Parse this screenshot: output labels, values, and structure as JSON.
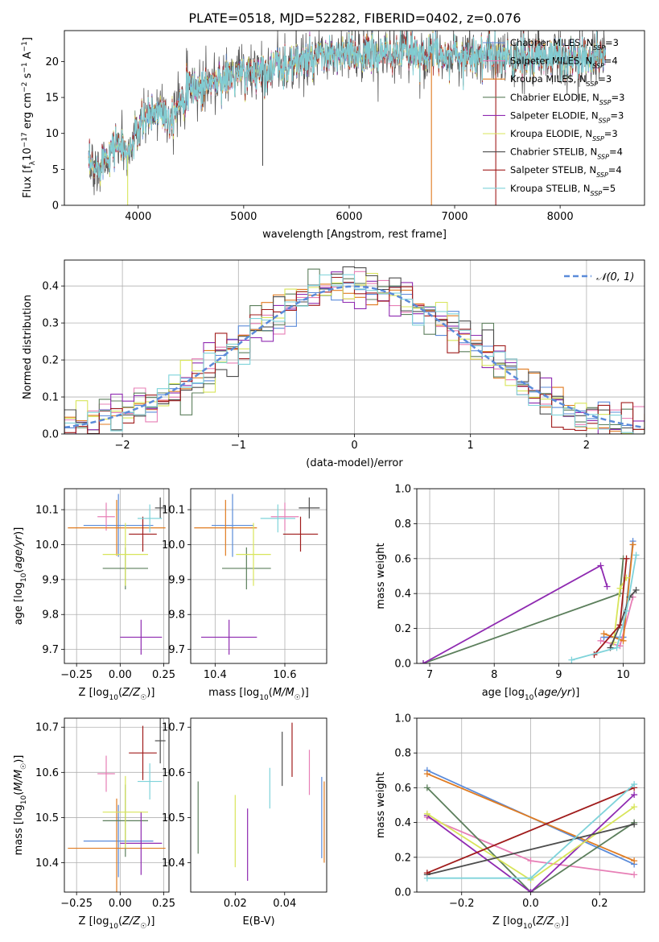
{
  "figure": {
    "title": "PLATE=0518, MJD=52282, FIBERID=0402, z=0.076"
  },
  "colors": {
    "Chabrier MILES": "#5b8bd9",
    "Salpeter MILES": "#e77fb6",
    "Kroupa MILES": "#e07b20",
    "Chabrier ELODIE": "#5c7f5c",
    "Salpeter ELODIE": "#8f2ab1",
    "Kroupa ELODIE": "#d8e55a",
    "Chabrier STELIB": "#4d4d4d",
    "Salpeter STELIB": "#a01c1c",
    "Kroupa STELIB": "#7fd3da"
  },
  "chart_data": [
    {
      "id": "spectrum",
      "type": "line",
      "xlabel": "wavelength [Angstrom, rest frame]",
      "ylabel": "Flux [fλ10⁻¹⁷ erg cm⁻² s⁻¹ A⁻¹]",
      "xlim": [
        3300,
        8800
      ],
      "ylim": [
        0,
        24.3
      ],
      "xticks": [
        4000,
        5000,
        6000,
        7000,
        8000
      ],
      "yticks": [
        0,
        5,
        10,
        15,
        20
      ],
      "grid": false,
      "legend_position": "right",
      "legend": [
        "Chabrier MILES, N_SSP=3",
        "Salpeter MILES, N_SSP=4",
        "Kroupa MILES, N_SSP=3",
        "Chabrier ELODIE, N_SSP=3",
        "Salpeter ELODIE, N_SSP=3",
        "Kroupa ELODIE, N_SSP=3",
        "Chabrier STELIB, N_SSP=4",
        "Salpeter STELIB, N_SSP=4",
        "Kroupa STELIB, N_SSP=5"
      ],
      "continuum": {
        "x": [
          3530,
          3600,
          3700,
          3800,
          3900,
          4000,
          4100,
          4200,
          4300,
          4400,
          4500,
          4700,
          4900,
          5100,
          5300,
          5500,
          5700,
          5900,
          6100,
          6300,
          6500,
          6700,
          6900,
          7100,
          7300,
          7500,
          7700,
          7900,
          8100,
          8300,
          8430
        ],
        "y": [
          5.5,
          5.0,
          7.2,
          8.6,
          7.0,
          10.5,
          12.5,
          13.5,
          12.0,
          15.0,
          16.0,
          17.2,
          18.0,
          18.5,
          19.2,
          19.8,
          20.4,
          20.8,
          21.0,
          21.0,
          21.3,
          21.2,
          21.0,
          20.8,
          21.0,
          20.5,
          20.3,
          21.0,
          20.2,
          20.8,
          20.8
        ]
      },
      "spikes": [
        {
          "x": 3900,
          "y_low": 0,
          "color": "#d8e55a"
        },
        {
          "x": 5180,
          "y_low": 5.5,
          "color": "#4d4d4d"
        },
        {
          "x": 6780,
          "y_low": 0,
          "color": "#e07b20"
        },
        {
          "x": 7390,
          "y_low": 0,
          "color": "#a01c1c"
        }
      ]
    },
    {
      "id": "residuals",
      "type": "line",
      "xlabel": "(data-model)/error",
      "ylabel": "Normed distribution",
      "xlim": [
        -2.5,
        2.5
      ],
      "ylim": [
        0,
        0.47
      ],
      "xticks": [
        -2,
        -1,
        0,
        1,
        2
      ],
      "yticks": [
        0.0,
        0.1,
        0.2,
        0.3,
        0.4
      ],
      "grid": true,
      "legend": [
        "𝒩(0, 1)"
      ],
      "legend_position": "top-right",
      "curve": "standard normal pdf",
      "bin_width": 0.1
    },
    {
      "id": "z-age",
      "type": "scatter",
      "xlabel": "Z [log₁₀(Z/Z☉)]",
      "ylabel": "age  [log₁₀(age/yr)]",
      "xlim": [
        -0.32,
        0.28
      ],
      "ylim": [
        9.66,
        10.16
      ],
      "xticks": [
        -0.25,
        0.0,
        0.25
      ],
      "yticks": [
        9.7,
        9.8,
        9.9,
        10.0,
        10.1
      ],
      "grid": true,
      "points": [
        {
          "model": "Chabrier MILES",
          "x": -0.01,
          "y": 10.055,
          "xerr": 0.2,
          "yerr": 0.09
        },
        {
          "model": "Salpeter MILES",
          "x": -0.08,
          "y": 10.08,
          "xerr": 0.05,
          "yerr": 0.04
        },
        {
          "model": "Kroupa MILES",
          "x": -0.02,
          "y": 10.048,
          "xerr": 0.28,
          "yerr": 0.08
        },
        {
          "model": "Chabrier ELODIE",
          "x": 0.03,
          "y": 9.932,
          "xerr": 0.13,
          "yerr": 0.06
        },
        {
          "model": "Salpeter ELODIE",
          "x": 0.12,
          "y": 9.735,
          "xerr": 0.12,
          "yerr": 0.05
        },
        {
          "model": "Kroupa ELODIE",
          "x": 0.03,
          "y": 9.972,
          "xerr": 0.13,
          "yerr": 0.09
        },
        {
          "model": "Chabrier STELIB",
          "x": 0.23,
          "y": 10.105,
          "xerr": 0.03,
          "yerr": 0.03
        },
        {
          "model": "Salpeter STELIB",
          "x": 0.13,
          "y": 10.03,
          "xerr": 0.08,
          "yerr": 0.05
        },
        {
          "model": "Kroupa STELIB",
          "x": 0.17,
          "y": 10.075,
          "xerr": 0.07,
          "yerr": 0.04
        }
      ]
    },
    {
      "id": "mass-age",
      "type": "scatter",
      "xlabel": "mass [log₁₀(M/M☉)]",
      "ylabel": "",
      "xlim": [
        10.33,
        10.72
      ],
      "ylim": [
        9.66,
        10.16
      ],
      "xticks": [
        10.4,
        10.6
      ],
      "yticks": [
        9.7,
        9.8,
        9.9,
        10.0,
        10.1
      ],
      "grid": true,
      "points": [
        {
          "model": "Chabrier MILES",
          "x": 10.45,
          "y": 10.055,
          "xerr": 0.06,
          "yerr": 0.09
        },
        {
          "model": "Salpeter MILES",
          "x": 10.6,
          "y": 10.08,
          "xerr": 0.04,
          "yerr": 0.04
        },
        {
          "model": "Kroupa MILES",
          "x": 10.43,
          "y": 10.048,
          "xerr": 0.09,
          "yerr": 0.08
        },
        {
          "model": "Chabrier ELODIE",
          "x": 10.49,
          "y": 9.932,
          "xerr": 0.07,
          "yerr": 0.06
        },
        {
          "model": "Salpeter ELODIE",
          "x": 10.44,
          "y": 9.735,
          "xerr": 0.08,
          "yerr": 0.05
        },
        {
          "model": "Kroupa ELODIE",
          "x": 10.51,
          "y": 9.972,
          "xerr": 0.05,
          "yerr": 0.09
        },
        {
          "model": "Chabrier STELIB",
          "x": 10.67,
          "y": 10.105,
          "xerr": 0.03,
          "yerr": 0.03
        },
        {
          "model": "Salpeter STELIB",
          "x": 10.645,
          "y": 10.03,
          "xerr": 0.05,
          "yerr": 0.05
        },
        {
          "model": "Kroupa STELIB",
          "x": 10.58,
          "y": 10.075,
          "xerr": 0.05,
          "yerr": 0.04
        }
      ]
    },
    {
      "id": "age-weight",
      "type": "line",
      "xlabel": "age  [log₁₀(age/yr)]",
      "ylabel": "mass weight",
      "xlim": [
        6.8,
        10.33
      ],
      "ylim": [
        0,
        1.0
      ],
      "xticks": [
        7,
        8,
        9,
        10
      ],
      "yticks": [
        0.0,
        0.2,
        0.4,
        0.6,
        0.8,
        1.0
      ],
      "grid": true,
      "series": [
        {
          "model": "Chabrier MILES",
          "points": [
            [
              9.7,
              0.15
            ],
            [
              10.0,
              0.15
            ],
            [
              10.15,
              0.7
            ]
          ]
        },
        {
          "model": "Salpeter MILES",
          "points": [
            [
              9.65,
              0.13
            ],
            [
              9.95,
              0.1
            ],
            [
              10.15,
              0.38
            ]
          ]
        },
        {
          "model": "Kroupa MILES",
          "points": [
            [
              9.7,
              0.17
            ],
            [
              10.0,
              0.13
            ],
            [
              10.15,
              0.68
            ]
          ]
        },
        {
          "model": "Chabrier ELODIE",
          "points": [
            [
              6.9,
              0.0
            ],
            [
              9.95,
              0.4
            ],
            [
              10.0,
              0.6
            ]
          ]
        },
        {
          "model": "Salpeter ELODIE",
          "points": [
            [
              6.9,
              0.0
            ],
            [
              9.65,
              0.56
            ],
            [
              9.75,
              0.44
            ]
          ]
        },
        {
          "model": "Kroupa ELODIE",
          "points": [
            [
              9.85,
              0.12
            ],
            [
              9.95,
              0.43
            ],
            [
              10.05,
              0.49
            ]
          ]
        },
        {
          "model": "Chabrier STELIB",
          "points": [
            [
              9.8,
              0.09
            ],
            [
              9.95,
              0.22
            ],
            [
              10.1,
              0.38
            ],
            [
              10.2,
              0.42
            ]
          ]
        },
        {
          "model": "Salpeter STELIB",
          "points": [
            [
              9.55,
              0.05
            ],
            [
              9.95,
              0.22
            ],
            [
              10.05,
              0.6
            ]
          ]
        },
        {
          "model": "Kroupa STELIB",
          "points": [
            [
              9.2,
              0.02
            ],
            [
              9.9,
              0.09
            ],
            [
              10.05,
              0.3
            ],
            [
              10.2,
              0.62
            ]
          ]
        }
      ]
    },
    {
      "id": "z-mass",
      "type": "scatter",
      "xlabel": "Z [log₁₀(Z/Z☉)]",
      "ylabel": "mass [log₁₀(M/M☉)]",
      "xlim": [
        -0.32,
        0.28
      ],
      "ylim": [
        10.335,
        10.72
      ],
      "xticks": [
        -0.25,
        0.0,
        0.25
      ],
      "yticks": [
        10.4,
        10.5,
        10.6,
        10.7
      ],
      "grid": true,
      "points": [
        {
          "model": "Chabrier MILES",
          "x": -0.01,
          "y": 10.448,
          "xerr": 0.2,
          "yerr": 0.08
        },
        {
          "model": "Salpeter MILES",
          "x": -0.08,
          "y": 10.597,
          "xerr": 0.05,
          "yerr": 0.04
        },
        {
          "model": "Kroupa MILES",
          "x": -0.02,
          "y": 10.432,
          "xerr": 0.28,
          "yerr": 0.11
        },
        {
          "model": "Chabrier ELODIE",
          "x": 0.03,
          "y": 10.493,
          "xerr": 0.13,
          "yerr": 0.08
        },
        {
          "model": "Salpeter ELODIE",
          "x": 0.12,
          "y": 10.443,
          "xerr": 0.12,
          "yerr": 0.07
        },
        {
          "model": "Kroupa ELODIE",
          "x": 0.03,
          "y": 10.512,
          "xerr": 0.13,
          "yerr": 0.08
        },
        {
          "model": "Chabrier STELIB",
          "x": 0.23,
          "y": 10.67,
          "xerr": 0.03,
          "yerr": 0.05
        },
        {
          "model": "Salpeter STELIB",
          "x": 0.13,
          "y": 10.643,
          "xerr": 0.08,
          "yerr": 0.06
        },
        {
          "model": "Kroupa STELIB",
          "x": 0.17,
          "y": 10.58,
          "xerr": 0.07,
          "yerr": 0.04
        }
      ]
    },
    {
      "id": "ebv-mass",
      "type": "scatter",
      "xlabel": "E(B-V)",
      "ylabel": "",
      "xlim": [
        0.002,
        0.057
      ],
      "ylim": [
        10.335,
        10.72
      ],
      "xticks": [
        0.02,
        0.04
      ],
      "yticks": [
        10.4,
        10.5,
        10.6,
        10.7
      ],
      "grid": false,
      "points": [
        {
          "model": "Chabrier MILES",
          "x": 0.055,
          "y": 10.5,
          "xerr": 0,
          "yerr": 0.09
        },
        {
          "model": "Salpeter MILES",
          "x": 0.05,
          "y": 10.6,
          "xerr": 0,
          "yerr": 0.05
        },
        {
          "model": "Kroupa MILES",
          "x": 0.056,
          "y": 10.49,
          "xerr": 0,
          "yerr": 0.09
        },
        {
          "model": "Chabrier ELODIE",
          "x": 0.005,
          "y": 10.5,
          "xerr": 0,
          "yerr": 0.08
        },
        {
          "model": "Salpeter ELODIE",
          "x": 0.025,
          "y": 10.44,
          "xerr": 0,
          "yerr": 0.08
        },
        {
          "model": "Kroupa ELODIE",
          "x": 0.02,
          "y": 10.47,
          "xerr": 0,
          "yerr": 0.08
        },
        {
          "model": "Chabrier STELIB",
          "x": 0.039,
          "y": 10.63,
          "xerr": 0,
          "yerr": 0.06
        },
        {
          "model": "Salpeter STELIB",
          "x": 0.043,
          "y": 10.65,
          "xerr": 0,
          "yerr": 0.06
        },
        {
          "model": "Kroupa STELIB",
          "x": 0.034,
          "y": 10.565,
          "xerr": 0,
          "yerr": 0.045
        }
      ]
    },
    {
      "id": "z-weight",
      "type": "line",
      "xlabel": "Z [log₁₀(Z/Z☉)]",
      "ylabel": "mass weight",
      "xlim": [
        -0.33,
        0.33
      ],
      "ylim": [
        0,
        1.0
      ],
      "xticks": [
        -0.2,
        0.0,
        0.2
      ],
      "yticks": [
        0.0,
        0.2,
        0.4,
        0.6,
        0.8,
        1.0
      ],
      "grid": true,
      "series": [
        {
          "model": "Chabrier MILES",
          "points": [
            [
              -0.3,
              0.7
            ],
            [
              0.3,
              0.16
            ]
          ]
        },
        {
          "model": "Salpeter MILES",
          "points": [
            [
              -0.3,
              0.43
            ],
            [
              0.0,
              0.18
            ],
            [
              0.3,
              0.1
            ]
          ]
        },
        {
          "model": "Kroupa MILES",
          "points": [
            [
              -0.3,
              0.68
            ],
            [
              0.3,
              0.18
            ]
          ]
        },
        {
          "model": "Chabrier ELODIE",
          "points": [
            [
              -0.3,
              0.6
            ],
            [
              0.0,
              0.0
            ],
            [
              0.3,
              0.4
            ]
          ]
        },
        {
          "model": "Salpeter ELODIE",
          "points": [
            [
              -0.3,
              0.44
            ],
            [
              0.0,
              0.0
            ],
            [
              0.3,
              0.56
            ]
          ]
        },
        {
          "model": "Kroupa ELODIE",
          "points": [
            [
              -0.3,
              0.45
            ],
            [
              0.0,
              0.07
            ],
            [
              0.3,
              0.49
            ]
          ]
        },
        {
          "model": "Chabrier STELIB",
          "points": [
            [
              -0.3,
              0.1
            ],
            [
              0.3,
              0.39
            ]
          ]
        },
        {
          "model": "Salpeter STELIB",
          "points": [
            [
              -0.3,
              0.11
            ],
            [
              0.3,
              0.6
            ]
          ]
        },
        {
          "model": "Kroupa STELIB",
          "points": [
            [
              -0.3,
              0.08
            ],
            [
              0.0,
              0.08
            ],
            [
              0.3,
              0.62
            ]
          ]
        }
      ]
    }
  ]
}
